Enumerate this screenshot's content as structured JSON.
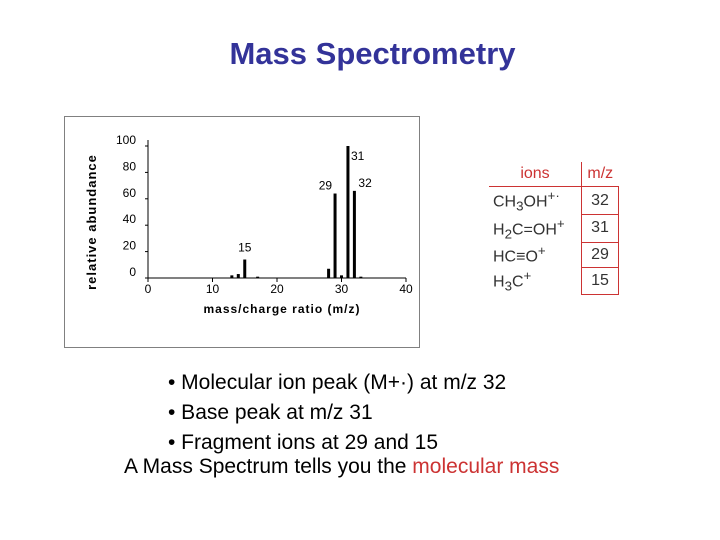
{
  "slide": {
    "title": "Mass Spectrometry"
  },
  "chart_data": {
    "type": "bar",
    "ylabel": "relative abundance",
    "xlabel": "mass/charge ratio (m/z)",
    "xlim": [
      0,
      40
    ],
    "ylim": [
      0,
      100
    ],
    "x_ticks": [
      "0",
      "10",
      "20",
      "30",
      "40"
    ],
    "y_ticks": [
      "0",
      "20",
      "40",
      "60",
      "80",
      "100"
    ],
    "bars": [
      {
        "x": 13,
        "y": 2
      },
      {
        "x": 14,
        "y": 3
      },
      {
        "x": 15,
        "y": 14
      },
      {
        "x": 17,
        "y": 1
      },
      {
        "x": 28,
        "y": 7
      },
      {
        "x": 29,
        "y": 64
      },
      {
        "x": 30,
        "y": 2
      },
      {
        "x": 31,
        "y": 100
      },
      {
        "x": 32,
        "y": 66
      },
      {
        "x": 33,
        "y": 1
      }
    ],
    "peak_labels": [
      {
        "x": 15,
        "y": 14,
        "text": "15"
      },
      {
        "x": 29,
        "y": 64,
        "text": "29"
      },
      {
        "x": 31,
        "y": 100,
        "text": "31"
      },
      {
        "x": 32,
        "y": 66,
        "text": "32"
      }
    ]
  },
  "ion_table": {
    "headers": {
      "ions": "ions",
      "mz": "m/z"
    },
    "rows": [
      {
        "ion": "CH3OH+·",
        "mz": "32"
      },
      {
        "ion": "H2C=OH+",
        "mz": "31"
      },
      {
        "ion": "HC≡O+",
        "mz": "29"
      },
      {
        "ion": "H3C+",
        "mz": "15"
      }
    ]
  },
  "bullets": [
    "• Molecular ion peak (M+·) at m/z 32",
    "• Base peak at m/z 31",
    "• Fragment ions at 29 and 15"
  ],
  "summary": {
    "prefix": "A Mass Spectrum tells you the ",
    "highlight": "molecular mass"
  }
}
